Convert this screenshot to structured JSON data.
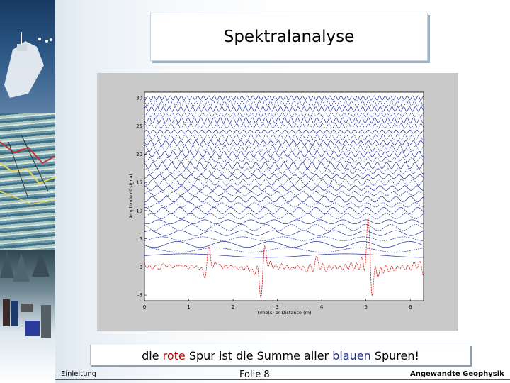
{
  "slide": {
    "title": "Spektralanalyse",
    "caption": {
      "part1": "die ",
      "red_word": "rote",
      "part2": " Spur ist die Summe aller ",
      "blue_word": "blauen",
      "part3": " Spuren!"
    },
    "footer": {
      "left": "Einleitung",
      "center": "Folie 8",
      "right": "Angewandte Geophysik"
    }
  },
  "chart_data": {
    "type": "line",
    "xlabel": "Time(s) or Distance (m)",
    "ylabel": "Amplitude of signal",
    "xlim": [
      0,
      6.3
    ],
    "ylim": [
      -6,
      31
    ],
    "x_ticks": [
      "0",
      "1",
      "2",
      "3",
      "4",
      "5",
      "6"
    ],
    "y_ticks": [
      "-5",
      "0",
      "5",
      "10",
      "15",
      "20",
      "25",
      "30"
    ],
    "blue_trace_offsets": [
      2,
      3,
      4,
      5,
      6,
      7,
      8,
      9,
      10,
      11,
      12,
      13,
      14,
      15,
      16,
      17,
      18,
      19,
      20,
      21,
      22,
      23,
      24,
      25,
      26,
      27,
      28,
      29,
      30
    ],
    "blue_trace_color": "#1c2e9a",
    "red_trace_color": "#d81b1b",
    "grid": false
  }
}
